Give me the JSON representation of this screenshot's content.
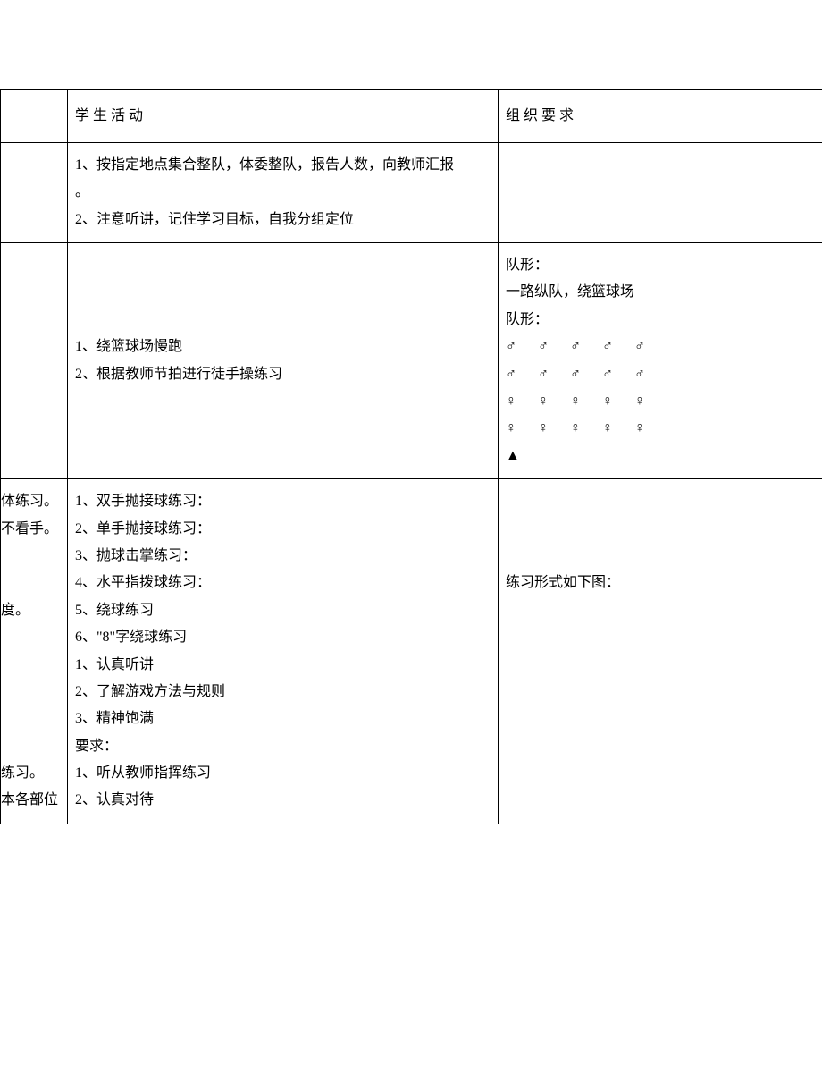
{
  "headers": {
    "col_left": "",
    "col_mid": "学 生 活 动",
    "col_right": "组 织 要 求"
  },
  "row1": {
    "left": "",
    "mid_line1": "1、按指定地点集合整队，体委整队，报告人数，向教师汇报",
    "mid_line1b": "。",
    "mid_line2": "2、注意听讲，记住学习目标，自我分组定位",
    "right": ""
  },
  "row2": {
    "left": "",
    "mid_line1": "1、绕篮球场慢跑",
    "mid_line2": "2、根据教师节拍进行徒手操练习",
    "right": {
      "line1": "队形：",
      "line2": "一路纵队，绕篮球场",
      "line3": "队形：",
      "symbols_male": "♂ ♂ ♂ ♂ ♂",
      "symbols_female": "♀ ♀ ♀ ♀ ♀",
      "triangle": "▲"
    }
  },
  "row3": {
    "left": {
      "l1": "体练习。",
      "l2": "不看手。",
      "l3": "度。",
      "l4": "练习。",
      "l5": "本各部位"
    },
    "mid": {
      "m1": "1、双手抛接球练习：",
      "m2": "2、单手抛接球练习：",
      "m3": "3、抛球击掌练习：",
      "m4": "4、水平指拨球练习：",
      "m5": "5、绕球练习",
      "m6": "6、\"8\"字绕球练习",
      "m7": "1、认真听讲",
      "m8": "2、了解游戏方法与规则",
      "m9": "3、精神饱满",
      "m10": "要求：",
      "m11": "1、听从教师指挥练习",
      "m12": "2、认真对待"
    },
    "right": {
      "r1": "练习形式如下图："
    }
  }
}
